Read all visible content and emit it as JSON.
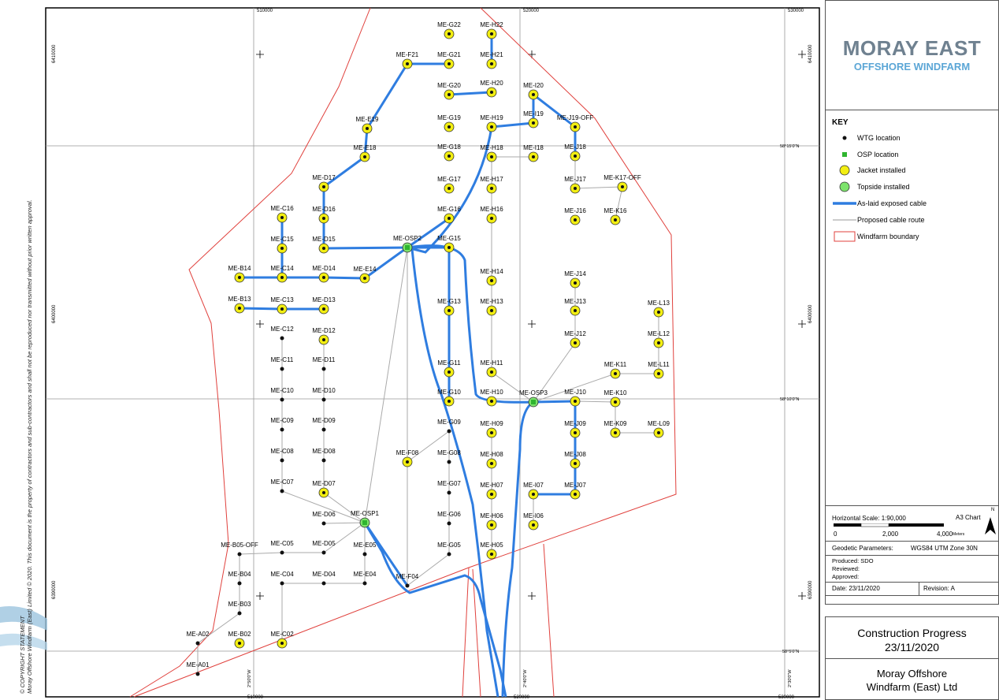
{
  "map": {
    "grid": {
      "eastings": [
        {
          "value": "510000",
          "x": 322
        },
        {
          "value": "520000",
          "x": 660
        },
        {
          "value": "530000",
          "x": 996
        }
      ],
      "northings_tick_left": [
        "6410000",
        "6400000",
        "6390000"
      ],
      "lat_labels": [
        "58°15'0\"N",
        "58°10'0\"N",
        "58°5'0\"N"
      ],
      "lon_labels": [
        "2°50'0\"W",
        "2°40'0\"W",
        "2°30'0\"W"
      ]
    },
    "colors": {
      "jacket": "#f2ee12",
      "topside": "#7de36c",
      "osp": "#2fb52f",
      "exposed_cable": "#2f7de0",
      "proposed_cable": "#aaaaaa",
      "boundary": "#e0403c",
      "wtg": "#111111"
    },
    "turbines": [
      {
        "id": "ME-G22",
        "type": "jacket"
      },
      {
        "id": "ME-H22",
        "type": "jacket"
      },
      {
        "id": "ME-F21",
        "type": "jacket"
      },
      {
        "id": "ME-G21",
        "type": "jacket"
      },
      {
        "id": "ME-H21",
        "type": "jacket"
      },
      {
        "id": "ME-G20",
        "type": "jacket"
      },
      {
        "id": "ME-H20",
        "type": "jacket"
      },
      {
        "id": "ME-I20",
        "type": "jacket"
      },
      {
        "id": "ME-E19",
        "type": "jacket"
      },
      {
        "id": "ME-G19",
        "type": "jacket"
      },
      {
        "id": "ME-H19",
        "type": "jacket"
      },
      {
        "id": "ME-I19",
        "type": "jacket"
      },
      {
        "id": "ME-J19-OFF",
        "type": "jacket"
      },
      {
        "id": "ME-E18",
        "type": "jacket"
      },
      {
        "id": "ME-G18",
        "type": "jacket"
      },
      {
        "id": "ME-H18",
        "type": "jacket"
      },
      {
        "id": "ME-I18",
        "type": "jacket"
      },
      {
        "id": "ME-J18",
        "type": "jacket"
      },
      {
        "id": "ME-D17",
        "type": "jacket"
      },
      {
        "id": "ME-G17",
        "type": "jacket"
      },
      {
        "id": "ME-H17",
        "type": "jacket"
      },
      {
        "id": "ME-J17",
        "type": "jacket"
      },
      {
        "id": "ME-K17-OFF",
        "type": "jacket"
      },
      {
        "id": "ME-C16",
        "type": "jacket"
      },
      {
        "id": "ME-D16",
        "type": "jacket"
      },
      {
        "id": "ME-G16",
        "type": "jacket"
      },
      {
        "id": "ME-H16",
        "type": "jacket"
      },
      {
        "id": "ME-J16",
        "type": "jacket"
      },
      {
        "id": "ME-K16",
        "type": "jacket"
      },
      {
        "id": "ME-C15",
        "type": "jacket"
      },
      {
        "id": "ME-D15",
        "type": "jacket"
      },
      {
        "id": "ME-OSP2",
        "type": "osp"
      },
      {
        "id": "ME-G15",
        "type": "jacket"
      },
      {
        "id": "ME-B14",
        "type": "jacket"
      },
      {
        "id": "ME-C14",
        "type": "jacket"
      },
      {
        "id": "ME-D14",
        "type": "jacket"
      },
      {
        "id": "ME-E14",
        "type": "jacket"
      },
      {
        "id": "ME-H14",
        "type": "jacket"
      },
      {
        "id": "ME-J14",
        "type": "jacket"
      },
      {
        "id": "ME-B13",
        "type": "jacket"
      },
      {
        "id": "ME-C13",
        "type": "jacket"
      },
      {
        "id": "ME-D13",
        "type": "jacket"
      },
      {
        "id": "ME-G13",
        "type": "jacket"
      },
      {
        "id": "ME-H13",
        "type": "jacket"
      },
      {
        "id": "ME-J13",
        "type": "jacket"
      },
      {
        "id": "ME-L13",
        "type": "jacket"
      },
      {
        "id": "ME-C12",
        "type": "wtg"
      },
      {
        "id": "ME-D12",
        "type": "jacket"
      },
      {
        "id": "ME-J12",
        "type": "jacket"
      },
      {
        "id": "ME-L12",
        "type": "jacket"
      },
      {
        "id": "ME-C11",
        "type": "wtg"
      },
      {
        "id": "ME-D11",
        "type": "wtg"
      },
      {
        "id": "ME-G11",
        "type": "jacket"
      },
      {
        "id": "ME-H11",
        "type": "jacket"
      },
      {
        "id": "ME-K11",
        "type": "jacket"
      },
      {
        "id": "ME-L11",
        "type": "jacket"
      },
      {
        "id": "ME-C10",
        "type": "wtg"
      },
      {
        "id": "ME-D10",
        "type": "wtg"
      },
      {
        "id": "ME-G10",
        "type": "jacket"
      },
      {
        "id": "ME-H10",
        "type": "jacket"
      },
      {
        "id": "ME-OSP3",
        "type": "osp"
      },
      {
        "id": "ME-J10",
        "type": "jacket"
      },
      {
        "id": "ME-K10",
        "type": "jacket"
      },
      {
        "id": "ME-C09",
        "type": "wtg"
      },
      {
        "id": "ME-D09",
        "type": "wtg"
      },
      {
        "id": "ME-G09",
        "type": "wtg"
      },
      {
        "id": "ME-H09",
        "type": "jacket"
      },
      {
        "id": "ME-J09",
        "type": "jacket"
      },
      {
        "id": "ME-K09",
        "type": "jacket"
      },
      {
        "id": "ME-L09",
        "type": "jacket"
      },
      {
        "id": "ME-C08",
        "type": "wtg"
      },
      {
        "id": "ME-D08",
        "type": "wtg"
      },
      {
        "id": "ME-F08",
        "type": "jacket"
      },
      {
        "id": "ME-G08",
        "type": "wtg"
      },
      {
        "id": "ME-H08",
        "type": "jacket"
      },
      {
        "id": "ME-J08",
        "type": "jacket"
      },
      {
        "id": "ME-C07",
        "type": "wtg"
      },
      {
        "id": "ME-D07",
        "type": "jacket"
      },
      {
        "id": "ME-G07",
        "type": "wtg"
      },
      {
        "id": "ME-H07",
        "type": "jacket"
      },
      {
        "id": "ME-I07",
        "type": "jacket"
      },
      {
        "id": "ME-J07",
        "type": "jacket"
      },
      {
        "id": "ME-D06",
        "type": "wtg"
      },
      {
        "id": "ME-OSP1",
        "type": "osp"
      },
      {
        "id": "ME-G06",
        "type": "wtg"
      },
      {
        "id": "ME-H06",
        "type": "jacket"
      },
      {
        "id": "ME-I06",
        "type": "jacket"
      },
      {
        "id": "ME-B05-OFF",
        "type": "wtg"
      },
      {
        "id": "ME-C05",
        "type": "wtg"
      },
      {
        "id": "ME-D05",
        "type": "wtg"
      },
      {
        "id": "ME-E05",
        "type": "wtg"
      },
      {
        "id": "ME-G05",
        "type": "wtg"
      },
      {
        "id": "ME-H05",
        "type": "jacket"
      },
      {
        "id": "ME-B04",
        "type": "wtg"
      },
      {
        "id": "ME-C04",
        "type": "wtg"
      },
      {
        "id": "ME-D04",
        "type": "wtg"
      },
      {
        "id": "ME-E04",
        "type": "wtg"
      },
      {
        "id": "ME-F04",
        "type": "wtg"
      },
      {
        "id": "ME-B03",
        "type": "wtg"
      },
      {
        "id": "ME-A02",
        "type": "wtg"
      },
      {
        "id": "ME-B02",
        "type": "jacket"
      },
      {
        "id": "ME-C02",
        "type": "jacket"
      },
      {
        "id": "ME-A01",
        "type": "wtg"
      }
    ]
  },
  "logo": {
    "line1": "MORAY EAST",
    "line2": "OFFSHORE WINDFARM"
  },
  "key": {
    "title": "KEY",
    "items": [
      "WTG location",
      "OSP location",
      "Jacket installed",
      "Topside installed",
      "As-laid exposed cable",
      "Proposed cable route",
      "Windfarm boundary"
    ]
  },
  "scale": {
    "label": "Horizontal Scale:  1:90,000",
    "chart": "A3 Chart",
    "ticks": [
      "0",
      "2,000",
      "4,000"
    ],
    "unit": "Meters",
    "north": "N"
  },
  "geodetic": {
    "label": "Geodetic Parameters:",
    "value": "WGS84 UTM Zone 30N"
  },
  "credits": {
    "produced": "Produced: SDO",
    "reviewed": "Reviewed:",
    "approved": "Approved:"
  },
  "date": "Date: 23/11/2020",
  "revision": "Revision: A",
  "title": {
    "line1": "Construction Progress",
    "line2": "23/11/2020"
  },
  "company": {
    "line1": "Moray Offshore",
    "line2": "Windfarm (East) Ltd"
  },
  "copyright": {
    "line1": "© COPYRIGHT STATEMENT",
    "line2": "Moray Offshore Windfarm (East) Limited © 2020. This document is the property of contractors and sub-contractors and shall not be reproduced nor transmitted without prior written approval."
  }
}
